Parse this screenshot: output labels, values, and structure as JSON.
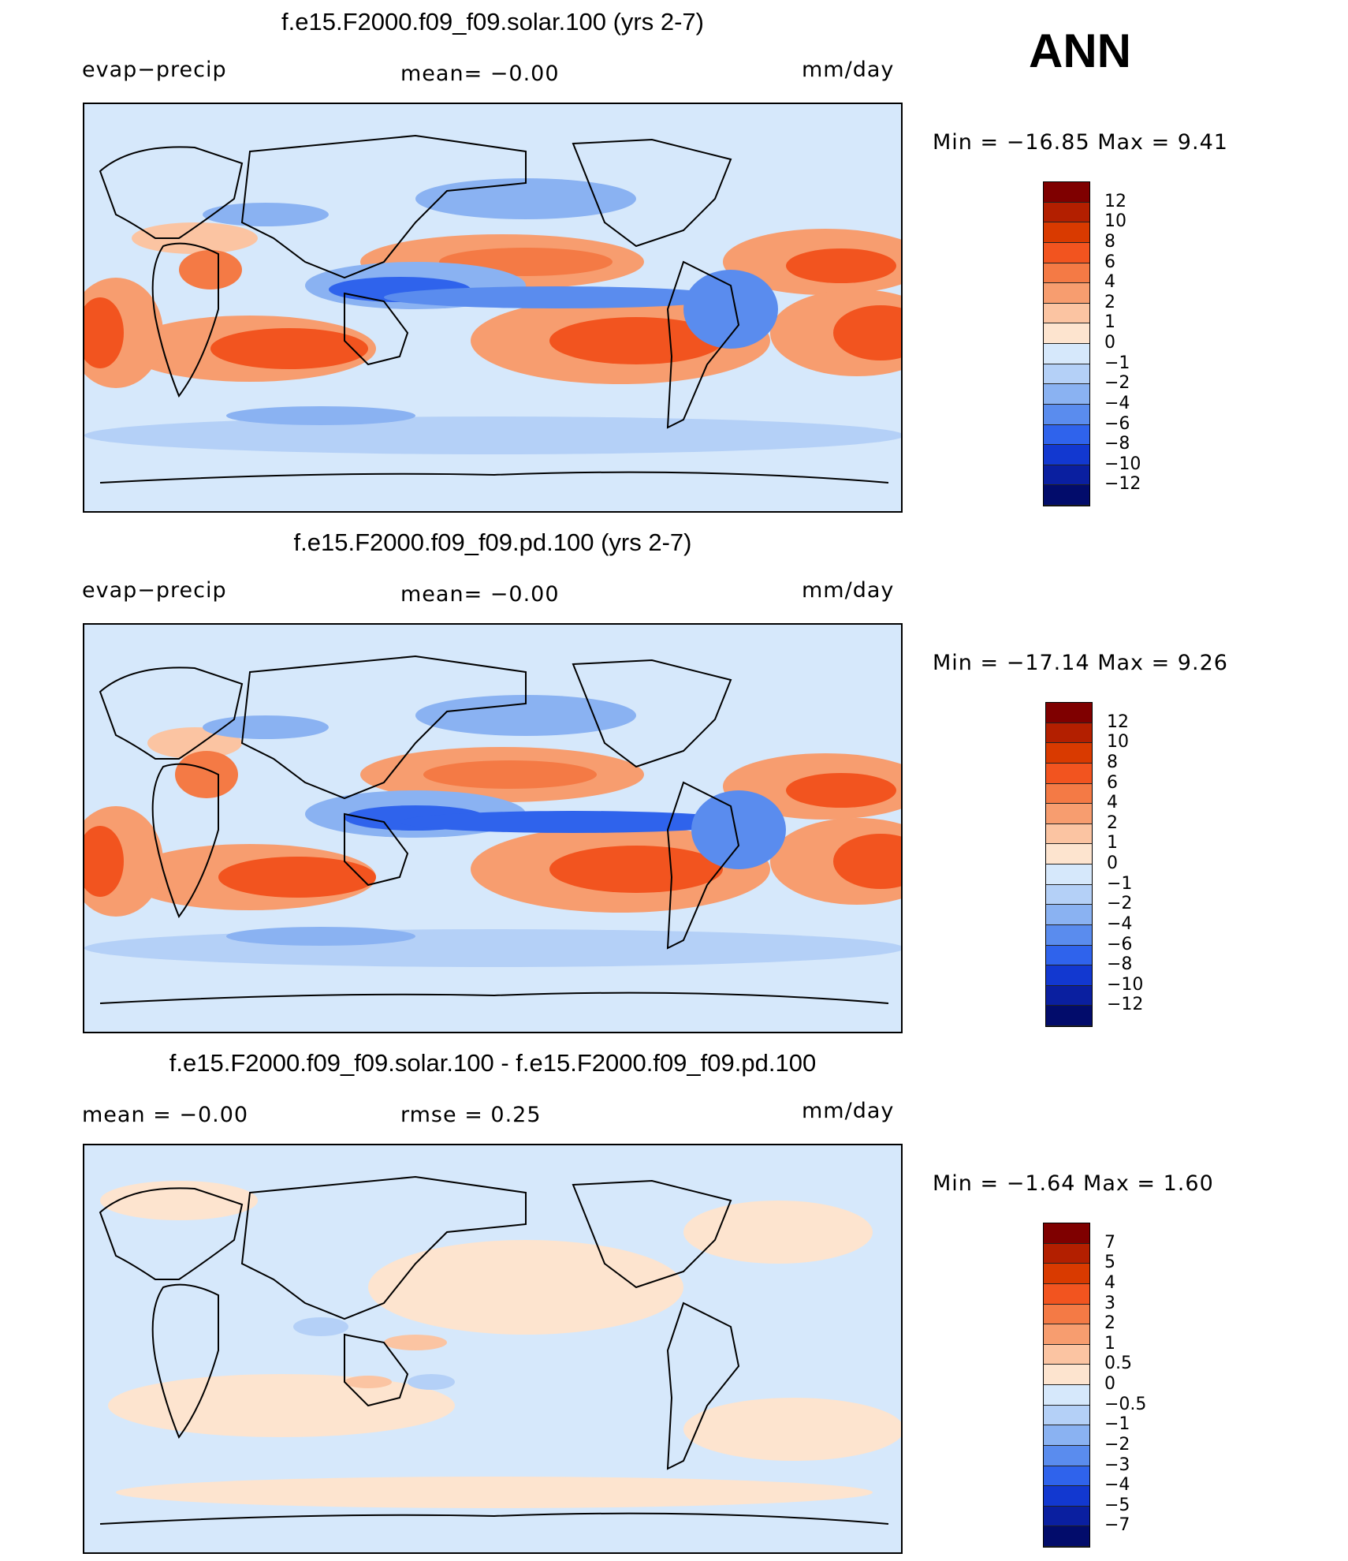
{
  "season": "ANN",
  "units": "mm/day",
  "panels": [
    {
      "title": "f.e15.F2000.f09_f09.solar.100 (yrs 2-7)",
      "left_label": "evap−precip",
      "center_label": "mean=   −0.00",
      "right_label": "mm/day",
      "stat_line": "Min  =  −16.85  Max  =     9.41",
      "kind": "field"
    },
    {
      "title": "f.e15.F2000.f09_f09.pd.100 (yrs 2-7)",
      "left_label": "evap−precip",
      "center_label": "mean=   −0.00",
      "right_label": "mm/day",
      "stat_line": "Min  =  −17.14  Max  =     9.26",
      "kind": "field"
    },
    {
      "title": "f.e15.F2000.f09_f09.solar.100 - f.e15.F2000.f09_f09.pd.100",
      "left_label": "mean  =    −0.00",
      "center_label": "rmse  =     0.25",
      "right_label": "mm/day",
      "stat_line": "Min  =    −1.64  Max  =     1.60",
      "kind": "diff"
    }
  ],
  "colorbars": [
    {
      "labels": [
        "12",
        "10",
        "8",
        "6",
        "4",
        "2",
        "1",
        "0",
        "−1",
        "−2",
        "−4",
        "−6",
        "−8",
        "−10",
        "−12"
      ],
      "colors": [
        "#7f0000",
        "#b31f00",
        "#d93a00",
        "#f2541f",
        "#f47a45",
        "#f79d6f",
        "#fbc4a2",
        "#fde4cf",
        "#d6e8fb",
        "#b4d0f7",
        "#8ab2f2",
        "#5a8cee",
        "#2f63ec",
        "#1238d0",
        "#0a1fa0",
        "#020c6b"
      ]
    },
    {
      "labels": [
        "12",
        "10",
        "8",
        "6",
        "4",
        "2",
        "1",
        "0",
        "−1",
        "−2",
        "−4",
        "−6",
        "−8",
        "−10",
        "−12"
      ],
      "colors": [
        "#7f0000",
        "#b31f00",
        "#d93a00",
        "#f2541f",
        "#f47a45",
        "#f79d6f",
        "#fbc4a2",
        "#fde4cf",
        "#d6e8fb",
        "#b4d0f7",
        "#8ab2f2",
        "#5a8cee",
        "#2f63ec",
        "#1238d0",
        "#0a1fa0",
        "#020c6b"
      ]
    },
    {
      "labels": [
        "7",
        "5",
        "4",
        "3",
        "2",
        "1",
        "0.5",
        "0",
        "−0.5",
        "−1",
        "−2",
        "−3",
        "−4",
        "−5",
        "−7"
      ],
      "colors": [
        "#7f0000",
        "#b31f00",
        "#d93a00",
        "#f2541f",
        "#f47a45",
        "#f79d6f",
        "#fbc4a2",
        "#fde4cf",
        "#d6e8fb",
        "#b4d0f7",
        "#8ab2f2",
        "#5a8cee",
        "#2f63ec",
        "#1238d0",
        "#0a1fa0",
        "#020c6b"
      ]
    }
  ]
}
